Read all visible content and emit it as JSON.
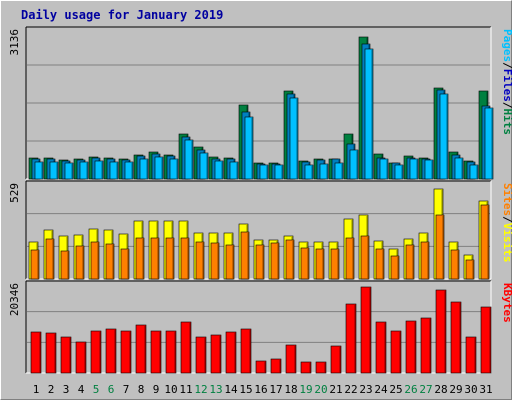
{
  "title": "Daily usage for January 2019",
  "colors": {
    "hits": "#008040",
    "files": "#0080c0",
    "pages": "#00c0ff",
    "visits": "#ffff00",
    "sites": "#ff8000",
    "kbytes": "#ff0000",
    "panel_bg": "#c0c0c0",
    "weekend_label": "#008040",
    "weekday_label": "#000000",
    "label_sep": "#000000"
  },
  "legend": {
    "top": [
      {
        "text": "Pages",
        "color": "#00c0ff"
      },
      {
        "text": "/",
        "color": "#000000"
      },
      {
        "text": "Files",
        "color": "#0000c0"
      },
      {
        "text": "/",
        "color": "#000000"
      },
      {
        "text": "Hits",
        "color": "#008040"
      }
    ],
    "middle": [
      {
        "text": "Sites",
        "color": "#ff8000"
      },
      {
        "text": "/",
        "color": "#000000"
      },
      {
        "text": "Visits",
        "color": "#ffff00"
      }
    ],
    "bottom": [
      {
        "text": "KBytes",
        "color": "#ff0000"
      }
    ]
  },
  "chart_data": [
    {
      "type": "bar",
      "name": "hits-files-pages",
      "ymax_label": "3136",
      "ylim": [
        0,
        3136
      ],
      "categories": [
        "1",
        "2",
        "3",
        "4",
        "5",
        "6",
        "7",
        "8",
        "9",
        "10",
        "11",
        "12",
        "13",
        "14",
        "15",
        "16",
        "17",
        "18",
        "19",
        "20",
        "21",
        "22",
        "23",
        "24",
        "25",
        "26",
        "27",
        "28",
        "29",
        "30",
        "31"
      ],
      "weekend_days": [
        "5",
        "6",
        "12",
        "13",
        "19",
        "20",
        "26",
        "27"
      ],
      "series": [
        {
          "name": "Hits",
          "values": [
            460,
            450,
            400,
            420,
            480,
            450,
            420,
            520,
            580,
            520,
            970,
            690,
            480,
            450,
            1600,
            350,
            340,
            1890,
            380,
            420,
            430,
            970,
            3050,
            530,
            350,
            490,
            450,
            1950,
            580,
            390,
            1900
          ]
        },
        {
          "name": "Files",
          "values": [
            430,
            430,
            390,
            410,
            450,
            430,
            410,
            490,
            540,
            490,
            900,
            630,
            440,
            420,
            1430,
            330,
            320,
            1820,
            360,
            400,
            420,
            760,
            2900,
            460,
            340,
            460,
            440,
            1910,
            520,
            370,
            1560
          ]
        },
        {
          "name": "Pages",
          "values": [
            370,
            360,
            340,
            360,
            390,
            370,
            360,
            430,
            470,
            430,
            830,
            560,
            390,
            360,
            1340,
            300,
            290,
            1740,
            300,
            330,
            350,
            620,
            2790,
            420,
            300,
            420,
            410,
            1830,
            450,
            300,
            1530
          ]
        }
      ]
    },
    {
      "type": "bar",
      "name": "visits-sites",
      "ymax_label": "529",
      "ylim": [
        0,
        529
      ],
      "categories": [
        "1",
        "2",
        "3",
        "4",
        "5",
        "6",
        "7",
        "8",
        "9",
        "10",
        "11",
        "12",
        "13",
        "14",
        "15",
        "16",
        "17",
        "18",
        "19",
        "20",
        "21",
        "22",
        "23",
        "24",
        "25",
        "26",
        "27",
        "28",
        "29",
        "30",
        "31"
      ],
      "series": [
        {
          "name": "Visits",
          "values": [
            210,
            280,
            250,
            255,
            290,
            280,
            260,
            335,
            335,
            335,
            335,
            265,
            265,
            265,
            315,
            225,
            225,
            245,
            210,
            215,
            210,
            345,
            370,
            220,
            170,
            230,
            265,
            520,
            210,
            140,
            450
          ]
        },
        {
          "name": "Sites",
          "values": [
            165,
            230,
            160,
            190,
            210,
            200,
            170,
            235,
            235,
            235,
            235,
            215,
            205,
            195,
            270,
            195,
            205,
            225,
            180,
            170,
            175,
            235,
            245,
            170,
            135,
            195,
            210,
            370,
            165,
            110,
            425
          ]
        }
      ]
    },
    {
      "type": "bar",
      "name": "kbytes",
      "ymax_label": "20346",
      "ylim": [
        0,
        20346
      ],
      "categories": [
        "1",
        "2",
        "3",
        "4",
        "5",
        "6",
        "7",
        "8",
        "9",
        "10",
        "11",
        "12",
        "13",
        "14",
        "15",
        "16",
        "17",
        "18",
        "19",
        "20",
        "21",
        "22",
        "23",
        "24",
        "25",
        "26",
        "27",
        "28",
        "29",
        "30",
        "31"
      ],
      "series": [
        {
          "name": "KBytes",
          "values": [
            9600,
            9400,
            8400,
            7400,
            10000,
            10400,
            10000,
            11300,
            10000,
            9900,
            12100,
            8400,
            9000,
            9600,
            10500,
            2800,
            3400,
            6600,
            2600,
            2600,
            6400,
            16400,
            20346,
            12000,
            10000,
            12300,
            13000,
            19700,
            16900,
            8600,
            15700
          ]
        }
      ]
    }
  ]
}
